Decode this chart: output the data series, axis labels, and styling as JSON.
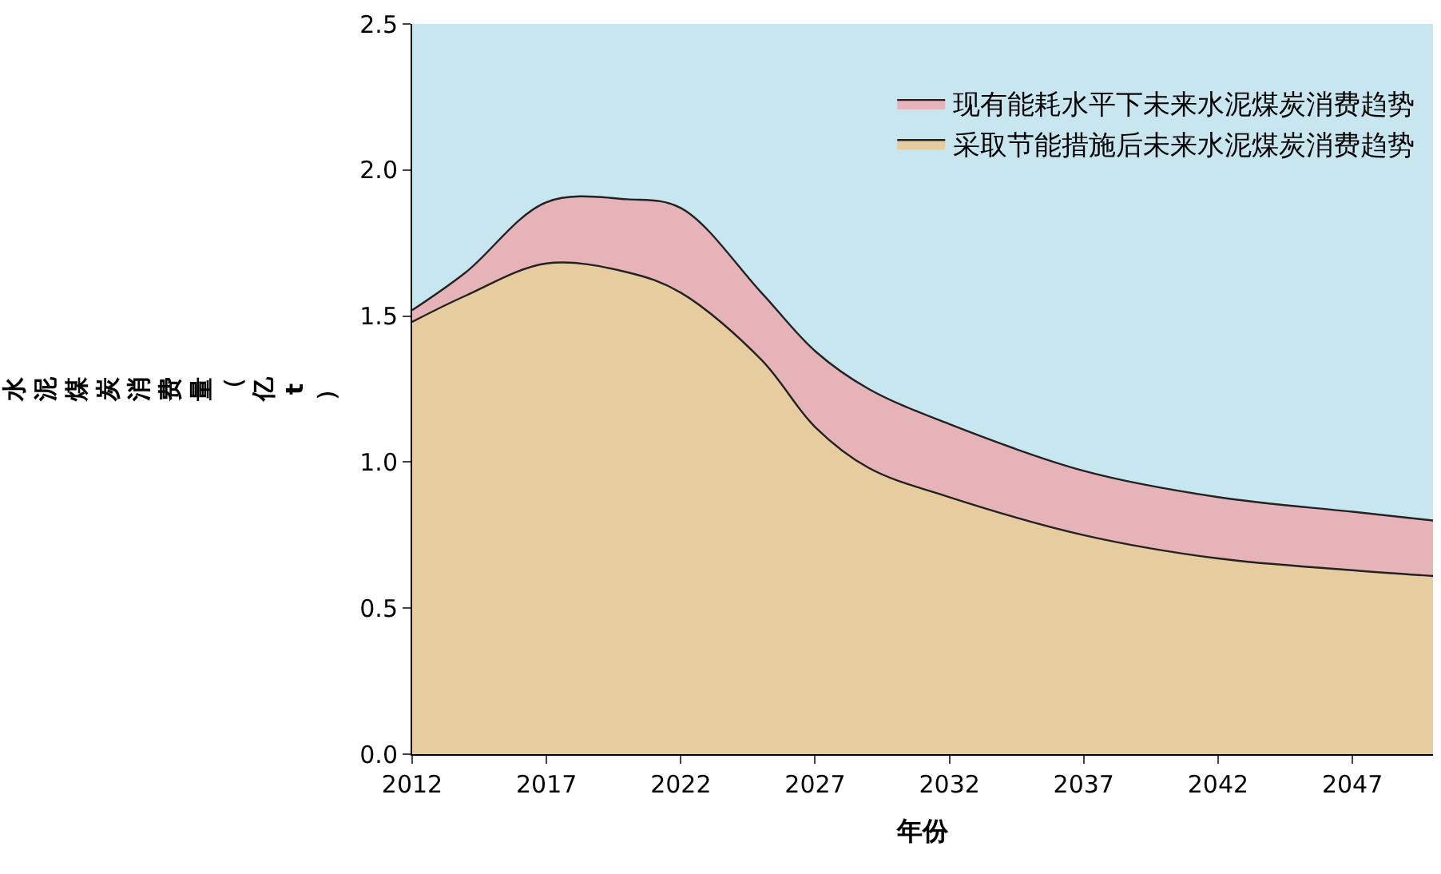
{
  "chart_data": {
    "type": "area",
    "xlabel": "年份",
    "ylabel": "水泥煤炭消费量（亿t）",
    "x": [
      2012,
      2014,
      2017,
      2020,
      2022,
      2025,
      2027,
      2029,
      2032,
      2037,
      2042,
      2047,
      2050
    ],
    "series": [
      {
        "name": "现有能耗水平下未来水泥煤炭消费趋势",
        "color": "#e6b3b8",
        "values": [
          1.52,
          1.65,
          1.89,
          1.9,
          1.87,
          1.58,
          1.38,
          1.25,
          1.13,
          0.97,
          0.88,
          0.83,
          0.8
        ]
      },
      {
        "name": "采取节能措施后未来水泥煤炭消费趋势",
        "color": "#e6cc9e",
        "values": [
          1.48,
          1.57,
          1.68,
          1.65,
          1.58,
          1.35,
          1.12,
          0.98,
          0.88,
          0.75,
          0.67,
          0.63,
          0.61
        ]
      }
    ],
    "xlim": [
      2012,
      2050
    ],
    "xticks": [
      2012,
      2017,
      2022,
      2027,
      2032,
      2037,
      2042,
      2047
    ],
    "ylim": [
      0,
      2.5
    ],
    "yticks": [
      {
        "value": 0,
        "label": "0.0"
      },
      {
        "value": 0.5,
        "label": "0.5"
      },
      {
        "value": 1,
        "label": "1.0"
      },
      {
        "value": 1.5,
        "label": "1.5"
      },
      {
        "value": 2,
        "label": "2.0"
      },
      {
        "value": 2.5,
        "label": "2.5"
      }
    ],
    "grid": false,
    "legend": "top right",
    "line_style": "solid"
  }
}
